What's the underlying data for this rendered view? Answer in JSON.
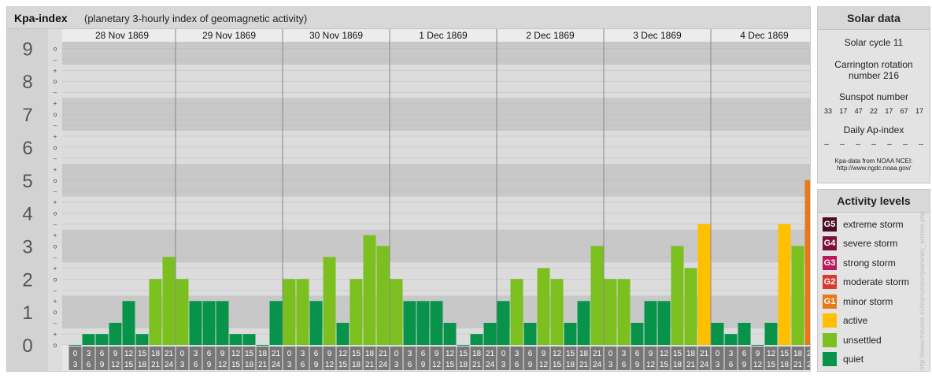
{
  "header": {
    "title": "Kpa-index",
    "subtitle": "(planetary 3-hourly index of geomagnetic activity)"
  },
  "chart_data": {
    "type": "bar",
    "days": [
      "28 Nov 1869",
      "29 Nov 1869",
      "30 Nov 1869",
      "1 Dec 1869",
      "2 Dec 1869",
      "3 Dec 1869",
      "4 Dec 1869"
    ],
    "interval_labels": [
      [
        "0",
        "3"
      ],
      [
        "3",
        "6"
      ],
      [
        "6",
        "9"
      ],
      [
        "9",
        "12"
      ],
      [
        "12",
        "15"
      ],
      [
        "15",
        "18"
      ],
      [
        "18",
        "21"
      ],
      [
        "21",
        "24"
      ]
    ],
    "values": [
      0,
      0.33,
      0.33,
      0.67,
      1.33,
      0.33,
      2,
      2.67,
      2,
      1.33,
      1.33,
      1.33,
      0.33,
      0.33,
      0,
      1.33,
      2,
      2,
      1.33,
      2.67,
      0.67,
      2,
      3.33,
      3,
      2,
      1.33,
      1.33,
      1.33,
      0.67,
      0,
      0.33,
      0.67,
      1.33,
      2,
      0.67,
      2.33,
      2,
      0.67,
      1.33,
      3,
      2,
      2,
      0.67,
      1.33,
      1.33,
      3,
      2.33,
      3.67,
      0.67,
      0.33,
      0.67,
      0,
      0.67,
      3.67,
      3,
      5
    ],
    "y_major_ticks": [
      "0",
      "1",
      "2",
      "3",
      "4",
      "5",
      "6",
      "7",
      "8",
      "9"
    ],
    "y_minor_ticks": [
      "+",
      "–",
      "o"
    ],
    "y_range": [
      0,
      9
    ],
    "color_scale": {
      "quiet": "#07944a",
      "unsettled": "#7bc01f",
      "active": "#ffc000",
      "minor_storm": "#e67a1a"
    }
  },
  "solar": {
    "title": "Solar data",
    "cycle": "Solar cycle 11",
    "carrington_line1": "Carrington rotation",
    "carrington_line2": "number 216",
    "sunspot_title": "Sunspot number",
    "sunspot_values": [
      "33",
      "17",
      "47",
      "22",
      "17",
      "67",
      "17"
    ],
    "ap_title": "Daily Ap-index",
    "ap_values": [
      "--",
      "--",
      "--",
      "--",
      "--",
      "--",
      "--"
    ],
    "source_line1": "Kpa-data from NOAA NCEI:",
    "source_line2": "http://www.ngdc.noaa.gov/"
  },
  "levels": {
    "title": "Activity levels",
    "items": [
      {
        "code": "G5",
        "label": "extreme storm",
        "color": "#4a0a26"
      },
      {
        "code": "G4",
        "label": "severe storm",
        "color": "#7d0f3c"
      },
      {
        "code": "G3",
        "label": "strong storm",
        "color": "#b8195c"
      },
      {
        "code": "G2",
        "label": "moderate storm",
        "color": "#d83b2d"
      },
      {
        "code": "G1",
        "label": "minor storm",
        "color": "#e67a1a"
      },
      {
        "code": "",
        "label": "active",
        "color": "#ffc000"
      },
      {
        "code": "",
        "label": "unsettled",
        "color": "#7bc01f"
      },
      {
        "code": "",
        "label": "quiet",
        "color": "#07944a"
      }
    ]
  },
  "credit": "http://www.theusee.eu/learnplanet/planetary_archive.php"
}
